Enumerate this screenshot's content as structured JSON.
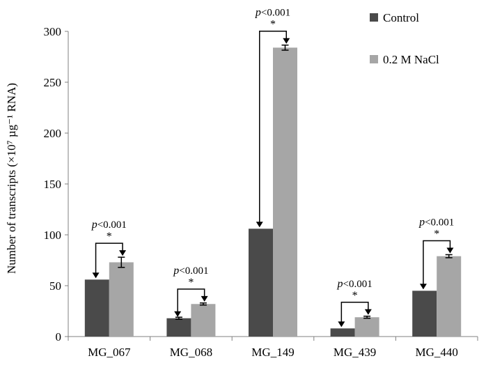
{
  "chart_data": {
    "type": "bar",
    "ylabel": "Number of transcripts (×10⁷ µg⁻¹ RNA)",
    "ylim": [
      0,
      300
    ],
    "yticks": [
      0,
      50,
      100,
      150,
      200,
      250,
      300
    ],
    "categories": [
      "MG_067",
      "MG_068",
      "MG_149",
      "MG_439",
      "MG_440"
    ],
    "series": [
      {
        "name": "Control",
        "color": "#4a4a4a",
        "values": [
          56,
          18,
          106,
          8,
          45
        ],
        "errors": [
          0,
          1,
          0,
          0,
          0
        ]
      },
      {
        "name": "0.2 M NaCl",
        "color": "#a6a6a6",
        "values": [
          73,
          32,
          284,
          19,
          79
        ],
        "errors": [
          5,
          1,
          2.5,
          1,
          1.5
        ]
      }
    ],
    "legend": {
      "position": "top-right"
    },
    "grid": false,
    "annotations": [
      {
        "category": "MG_067",
        "pvalue": "p<0.001",
        "mark": "*"
      },
      {
        "category": "MG_068",
        "pvalue": "p<0.001",
        "mark": "*"
      },
      {
        "category": "MG_149",
        "pvalue": "p<0.001",
        "mark": "*"
      },
      {
        "category": "MG_439",
        "pvalue": "p<0.001",
        "mark": "*"
      },
      {
        "category": "MG_440",
        "pvalue": "p<0.001",
        "mark": "*"
      }
    ]
  }
}
